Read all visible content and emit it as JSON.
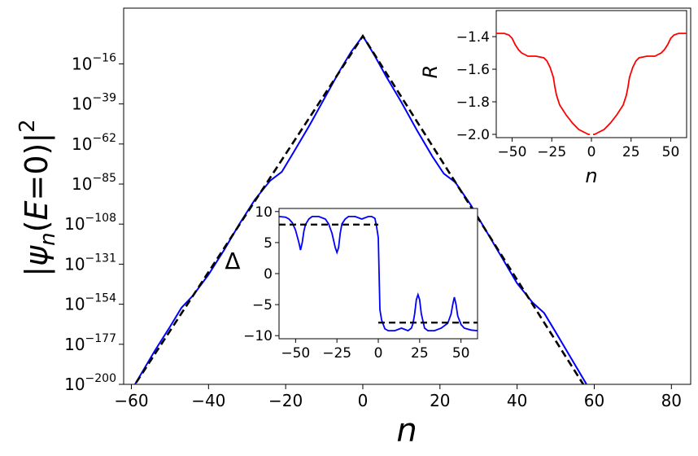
{
  "chart_data": [
    {
      "type": "line",
      "panel": "main",
      "xlabel": "n",
      "ylabel": "|ψ_n(E=0)|^2",
      "xlim": [
        -62,
        85
      ],
      "ylim_log10": [
        -200,
        16
      ],
      "y_scale": "log",
      "xticks": [
        -60,
        -40,
        -20,
        0,
        20,
        40,
        60,
        80
      ],
      "xtick_labels": [
        "−60",
        "−40",
        "−20",
        "0",
        "20",
        "40",
        "60",
        "80"
      ],
      "yticks_exp": [
        -16,
        -39,
        -62,
        -85,
        -108,
        -131,
        -154,
        -177,
        -200
      ],
      "ytick_labels": [
        {
          "base": "10",
          "exp": "−16"
        },
        {
          "base": "10",
          "exp": "−39"
        },
        {
          "base": "10",
          "exp": "−62"
        },
        {
          "base": "10",
          "exp": "−85"
        },
        {
          "base": "10",
          "exp": "−108"
        },
        {
          "base": "10",
          "exp": "−131"
        },
        {
          "base": "10",
          "exp": "−154"
        },
        {
          "base": "10",
          "exp": "−177"
        },
        {
          "base": "10",
          "exp": "−200"
        }
      ],
      "grid": false,
      "series": [
        {
          "color": "#0000ff",
          "style": "solid",
          "x": [
            -62,
            -58,
            -54,
            -50,
            -47,
            -44,
            -40,
            -36,
            -32,
            -28,
            -24,
            -21,
            -18,
            -14,
            -10,
            -6,
            -3,
            0,
            3,
            6,
            10,
            14,
            18,
            21,
            24,
            28,
            32,
            36,
            40,
            44,
            47,
            50,
            54,
            58,
            60
          ],
          "y_log10": [
            -211,
            -196,
            -181,
            -167,
            -156,
            -149,
            -137,
            -123,
            -108,
            -94,
            -83,
            -78,
            -67,
            -52,
            -36,
            -20,
            -9,
            0,
            -11,
            -23,
            -38,
            -54,
            -69,
            -79,
            -84,
            -97,
            -112,
            -127,
            -142,
            -153,
            -159,
            -170,
            -185,
            -200,
            -210
          ]
        },
        {
          "color": "#000000",
          "style": "dashed",
          "x": [
            -62,
            0,
            60
          ],
          "y_log10": [
            -210,
            0,
            -210
          ]
        }
      ]
    },
    {
      "type": "line",
      "panel": "inset-top-right",
      "xlabel": "n",
      "ylabel": "R",
      "xlim": [
        -60,
        60
      ],
      "ylim": [
        -2.02,
        -1.24
      ],
      "xticks": [
        -50,
        -25,
        0,
        25,
        50
      ],
      "xtick_labels": [
        "−50",
        "−25",
        "0",
        "25",
        "50"
      ],
      "yticks": [
        -1.4,
        -1.6,
        -1.8,
        -2.0
      ],
      "ytick_labels": [
        "−1.4",
        "−1.6",
        "−1.8",
        "−2.0"
      ],
      "series": [
        {
          "color": "#ff0000",
          "x": [
            -60,
            -55,
            -52,
            -50,
            -48,
            -46,
            -44,
            -42,
            -40,
            -35,
            -30,
            -28,
            -26,
            -24,
            -23,
            -22,
            -20,
            -16,
            -12,
            -8,
            -4,
            -2,
            -1
          ],
          "y": [
            -1.38,
            -1.38,
            -1.39,
            -1.41,
            -1.45,
            -1.48,
            -1.5,
            -1.51,
            -1.52,
            -1.52,
            -1.53,
            -1.55,
            -1.59,
            -1.65,
            -1.71,
            -1.76,
            -1.82,
            -1.88,
            -1.93,
            -1.97,
            -1.99,
            -2.0,
            -2.0
          ]
        },
        {
          "color": "#ff0000",
          "x": [
            1,
            2,
            4,
            8,
            12,
            16,
            20,
            22,
            23,
            24,
            26,
            28,
            30,
            35,
            40,
            42,
            44,
            46,
            48,
            50,
            52,
            55,
            60
          ],
          "y": [
            -2.0,
            -2.0,
            -1.99,
            -1.97,
            -1.93,
            -1.88,
            -1.82,
            -1.76,
            -1.71,
            -1.65,
            -1.59,
            -1.55,
            -1.53,
            -1.52,
            -1.52,
            -1.51,
            -1.5,
            -1.48,
            -1.45,
            -1.41,
            -1.39,
            -1.38,
            -1.38
          ]
        }
      ]
    },
    {
      "type": "line",
      "panel": "inset-middle",
      "xlabel": "",
      "ylabel": "Δ",
      "xlim": [
        -60,
        60
      ],
      "ylim": [
        -10.5,
        10.5
      ],
      "xticks": [
        -50,
        -25,
        0,
        25,
        50
      ],
      "xtick_labels": [
        "−50",
        "−25",
        "0",
        "25",
        "50"
      ],
      "yticks": [
        10,
        5,
        0,
        -5,
        -10
      ],
      "ytick_labels": [
        "10",
        "5",
        "0",
        "−5",
        "−10"
      ],
      "series": [
        {
          "color": "#0000ff",
          "style": "solid",
          "x": [
            -60,
            -56,
            -54,
            -52,
            -50,
            -48,
            -47,
            -46,
            -45,
            -44,
            -42,
            -40,
            -36,
            -32,
            -30,
            -28,
            -26,
            -25,
            -24,
            -23,
            -22,
            -20,
            -18,
            -14,
            -10,
            -6,
            -4,
            -2,
            -1,
            0,
            0.5,
            1,
            2,
            4,
            6,
            10,
            14,
            18,
            20,
            21,
            22,
            23,
            24,
            25,
            26,
            28,
            30,
            34,
            38,
            42,
            44,
            45,
            46,
            47,
            48,
            50,
            52,
            56,
            60
          ],
          "y": [
            9.2,
            9.1,
            8.8,
            8.2,
            7.0,
            5.0,
            3.8,
            5.0,
            6.8,
            7.9,
            8.8,
            9.2,
            9.2,
            8.8,
            8.0,
            6.5,
            4.2,
            3.4,
            4.2,
            6.5,
            8.0,
            8.8,
            9.2,
            9.2,
            8.8,
            9.2,
            9.2,
            8.9,
            7.5,
            5.8,
            0,
            -5.8,
            -7.5,
            -8.9,
            -9.2,
            -9.2,
            -8.8,
            -9.2,
            -8.8,
            -8.0,
            -6.5,
            -4.2,
            -3.4,
            -4.2,
            -6.5,
            -8.8,
            -9.2,
            -9.2,
            -8.8,
            -8.0,
            -6.5,
            -5.0,
            -3.8,
            -5.0,
            -6.8,
            -8.2,
            -8.8,
            -9.1,
            -9.2
          ]
        },
        {
          "color": "#000000",
          "style": "dashed",
          "x": [
            -60,
            0
          ],
          "y": [
            7.9,
            7.9
          ]
        },
        {
          "color": "#000000",
          "style": "dashed",
          "x": [
            0,
            60
          ],
          "y": [
            -7.9,
            -7.9
          ]
        }
      ]
    }
  ]
}
